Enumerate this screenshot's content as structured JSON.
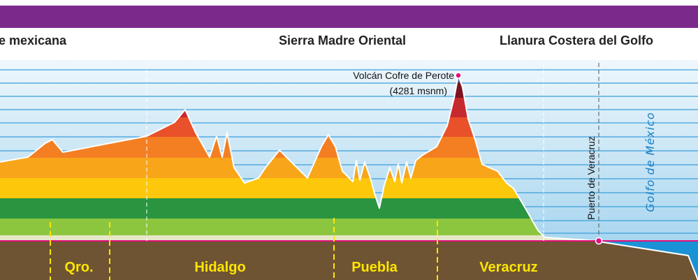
{
  "regions": [
    "e mexicana",
    "Sierra Madre Oriental",
    "Llanura Costera del Golfo"
  ],
  "peak": {
    "name": "Volcán Cofre de Perote",
    "elevation": "(4281 msnm)"
  },
  "port": "Puerto de Veracruz",
  "sea": "Golfo de México",
  "states": [
    "Qro.",
    "Hidalgo",
    "Puebla",
    "Veracruz"
  ]
}
